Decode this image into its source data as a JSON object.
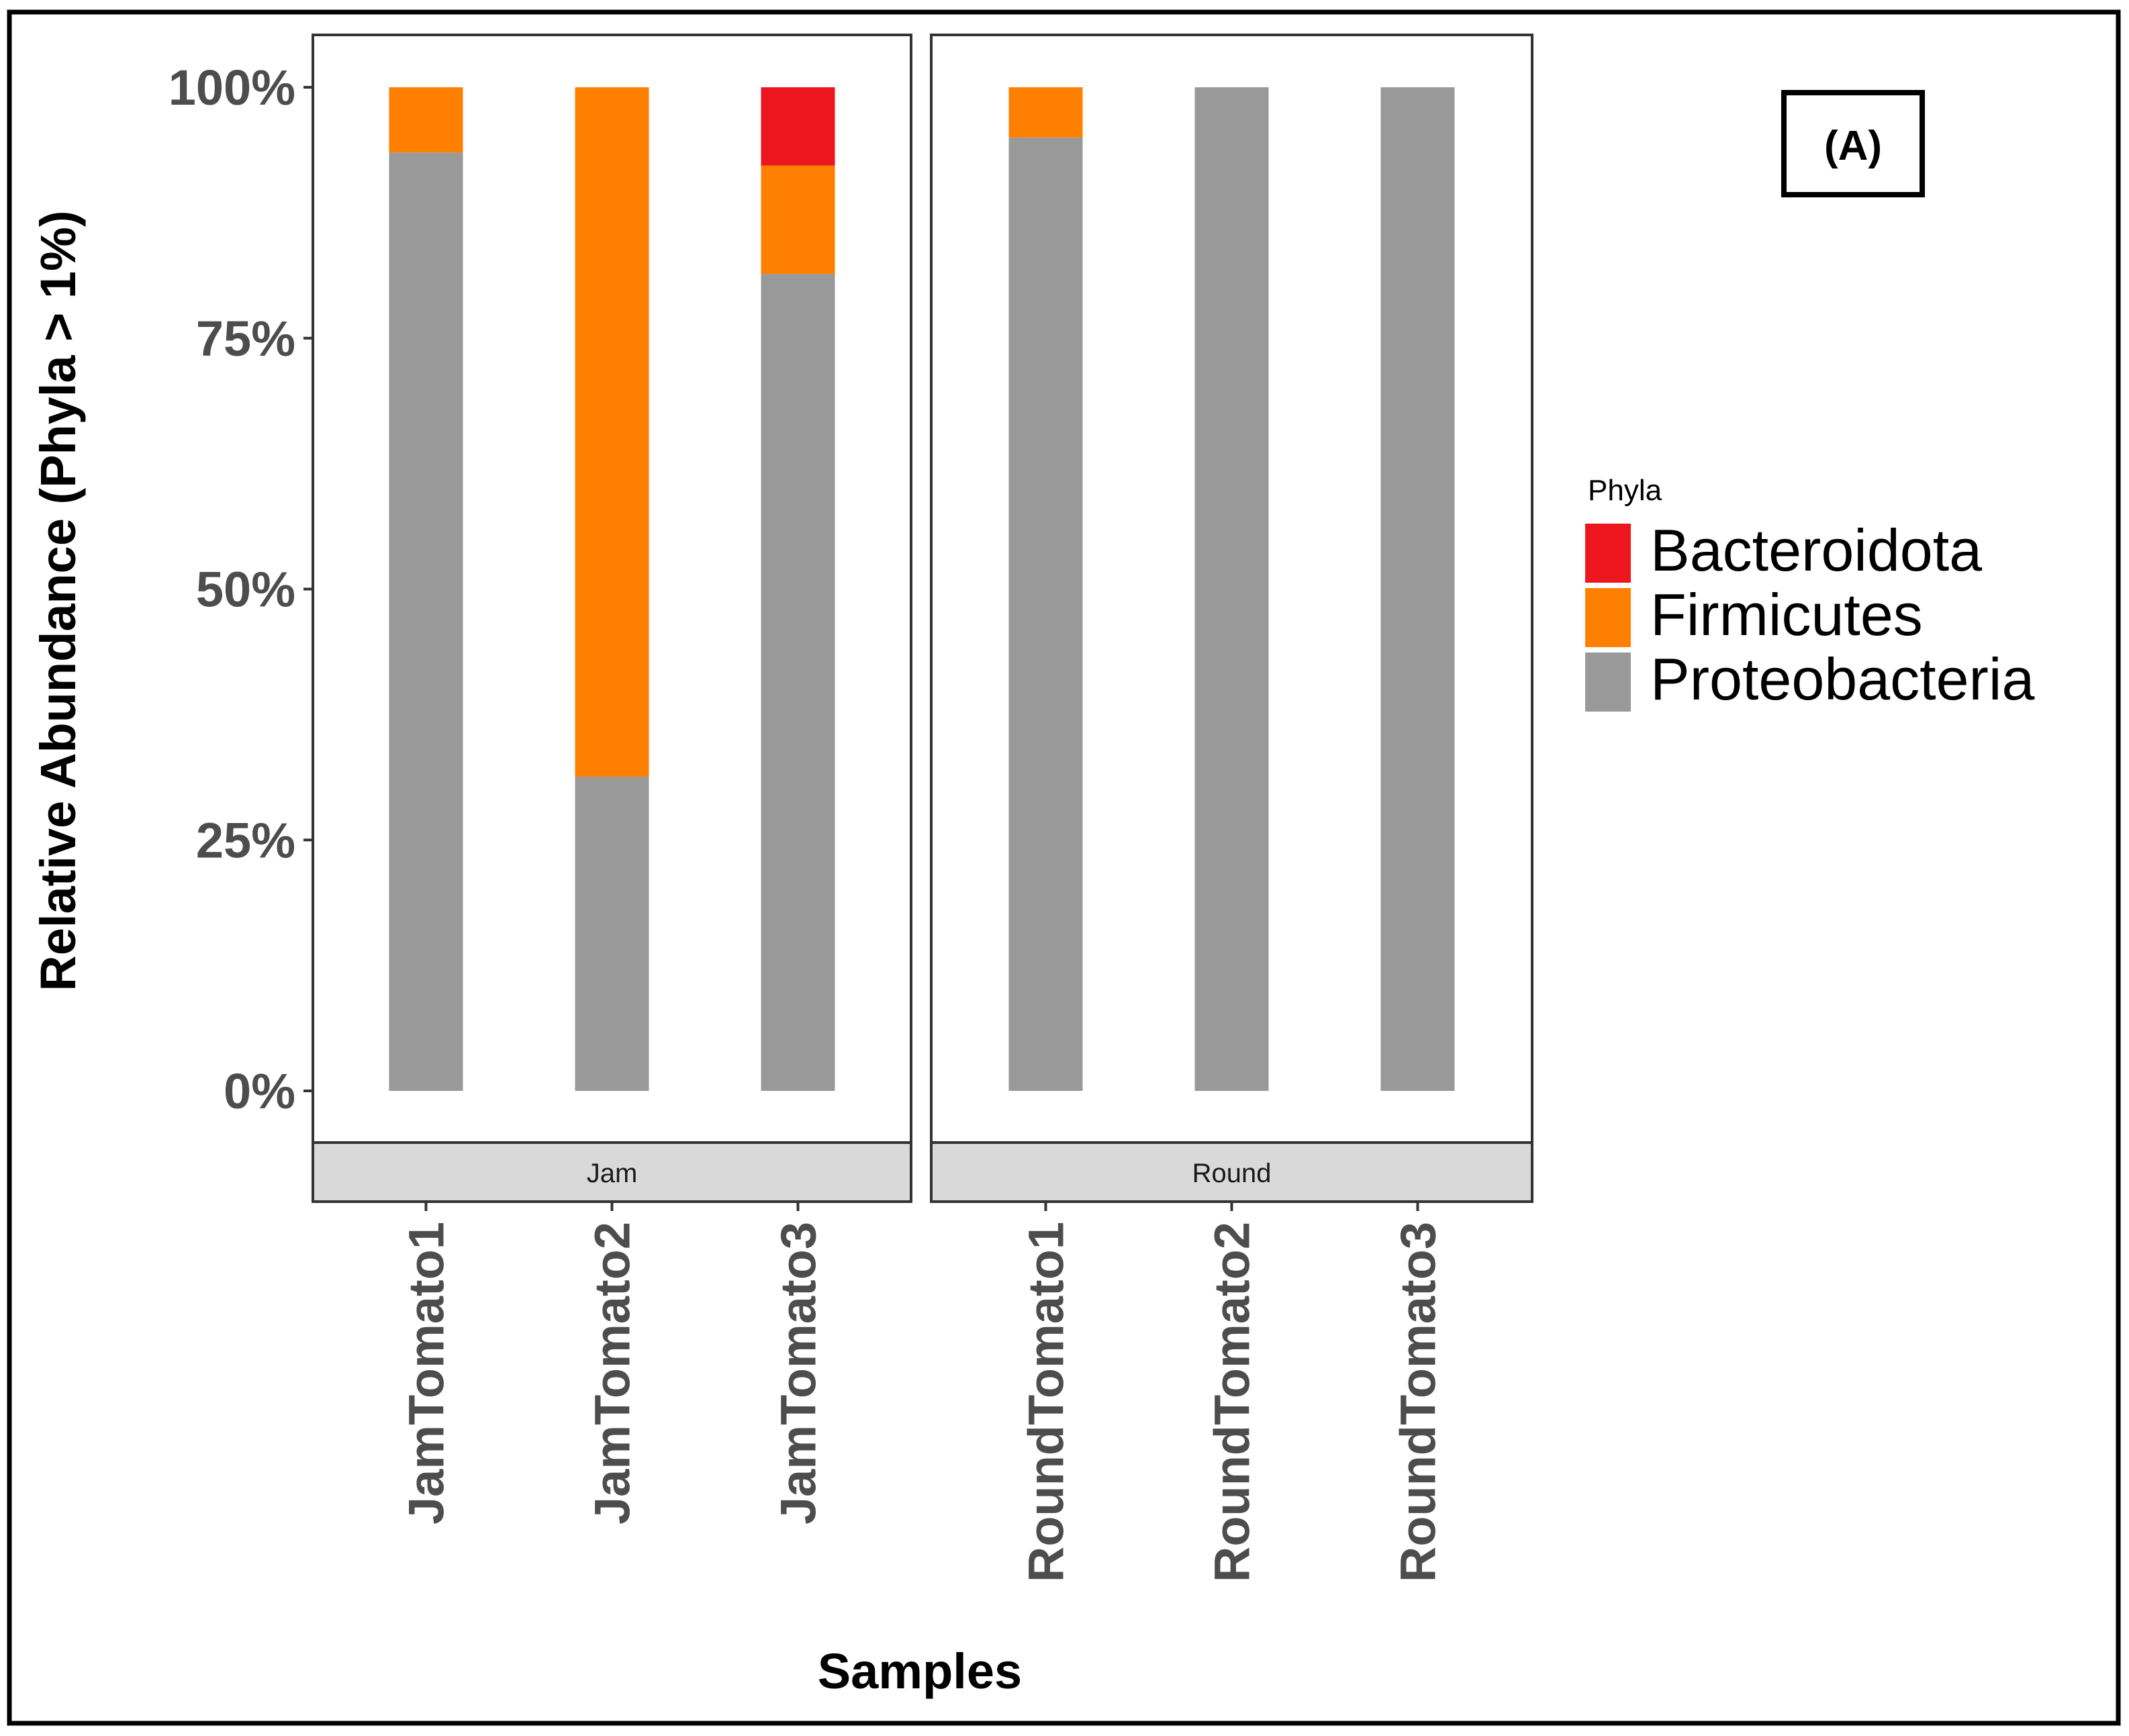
{
  "chart_data": {
    "type": "bar",
    "stacked": true,
    "title": "",
    "xlabel": "Samples",
    "ylabel": "Relative Abundance (Phyla > 1%)",
    "ylim": [
      0,
      100
    ],
    "y_ticks": [
      0,
      25,
      50,
      75,
      100
    ],
    "y_tick_labels": [
      "0%",
      "25%",
      "50%",
      "75%",
      "100%"
    ],
    "panel_tag": "(A)",
    "legend": {
      "title": "Phyla",
      "position": "right",
      "entries": [
        "Bacteroidota",
        "Firmicutes",
        "Proteobacteria"
      ]
    },
    "colors": {
      "Bacteroidota": "#ee161e",
      "Firmicutes": "#ff7f00",
      "Proteobacteria": "#999999"
    },
    "facets": [
      {
        "label": "Jam",
        "categories": [
          "JamTomato1",
          "JamTomato2",
          "JamTomato3"
        ],
        "series": [
          {
            "name": "Proteobacteria",
            "values": [
              93.5,
              31.3,
              81.4
            ]
          },
          {
            "name": "Firmicutes",
            "values": [
              6.5,
              68.7,
              10.8
            ]
          },
          {
            "name": "Bacteroidota",
            "values": [
              0,
              0,
              7.8
            ]
          }
        ]
      },
      {
        "label": "Round",
        "categories": [
          "RoundTomato1",
          "RoundTomato2",
          "RoundTomato3"
        ],
        "series": [
          {
            "name": "Proteobacteria",
            "values": [
              95.0,
              100,
              100
            ]
          },
          {
            "name": "Firmicutes",
            "values": [
              5.0,
              0,
              0
            ]
          },
          {
            "name": "Bacteroidota",
            "values": [
              0,
              0,
              0
            ]
          }
        ]
      }
    ]
  }
}
